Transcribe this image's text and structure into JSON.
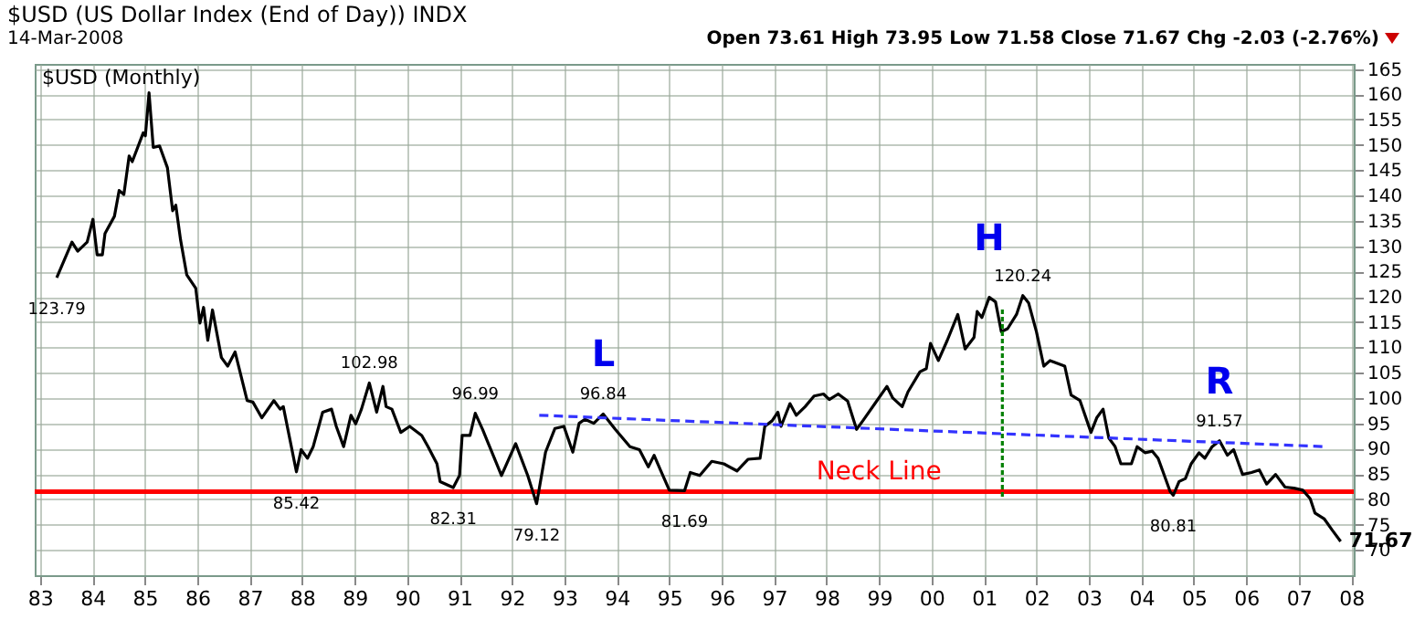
{
  "chart_data": {
    "type": "line",
    "title": "$USD (US Dollar Index (End of Day)) INDX",
    "subtitle": "14-Mar-2008",
    "annotations": [
      "Open 73.61  High 73.95  Low 71.58  Close 71.67  Chg -2.03 (-2.76%)",
      "$USD (Monthly)",
      {
        "text": "123.79",
        "x": 1983.32,
        "y": 123.79
      },
      {
        "text": "102.98",
        "x": 1989.28,
        "y": 102.98
      },
      {
        "text": "85.42",
        "x": 1987.89,
        "y": 85.42
      },
      {
        "text": "82.31",
        "x": 1990.88,
        "y": 82.31
      },
      {
        "text": "96.99",
        "x": 1991.3,
        "y": 96.99
      },
      {
        "text": "79.12",
        "x": 1992.47,
        "y": 79.12
      },
      {
        "text": "96.84",
        "x": 1993.74,
        "y": 96.84
      },
      {
        "text": "81.69",
        "x": 1995.29,
        "y": 81.69
      },
      {
        "text": "120.24",
        "x": 2001.74,
        "y": 120.24
      },
      {
        "text": "80.81",
        "x": 2004.61,
        "y": 80.81
      },
      {
        "text": "91.57",
        "x": 2005.49,
        "y": 91.57
      },
      {
        "text": "71.67",
        "x": 2007.8,
        "y": 71.67
      },
      {
        "text": "L",
        "x": 1993.74,
        "y": 96.84
      },
      {
        "text": "H",
        "x": 2001.1,
        "y": 119.9
      },
      {
        "text": "R",
        "x": 2005.49,
        "y": 91.57
      }
    ],
    "xlim": [
      1982.9,
      2008.05
    ],
    "ylim": [
      65,
      166
    ],
    "xticks": [
      {
        "value": 1983,
        "label": "83"
      },
      {
        "value": 1984,
        "label": "84"
      },
      {
        "value": 1985,
        "label": "85"
      },
      {
        "value": 1986,
        "label": "86"
      },
      {
        "value": 1987,
        "label": "87"
      },
      {
        "value": 1988,
        "label": "88"
      },
      {
        "value": 1989,
        "label": "89"
      },
      {
        "value": 1990,
        "label": "90"
      },
      {
        "value": 1991,
        "label": "91"
      },
      {
        "value": 1992,
        "label": "92"
      },
      {
        "value": 1993,
        "label": "93"
      },
      {
        "value": 1994,
        "label": "94"
      },
      {
        "value": 1995,
        "label": "95"
      },
      {
        "value": 1996,
        "label": "96"
      },
      {
        "value": 1997,
        "label": "97"
      },
      {
        "value": 1998,
        "label": "98"
      },
      {
        "value": 1999,
        "label": "99"
      },
      {
        "value": 2000,
        "label": "00"
      },
      {
        "value": 2001,
        "label": "01"
      },
      {
        "value": 2002,
        "label": "02"
      },
      {
        "value": 2003,
        "label": "03"
      },
      {
        "value": 2004,
        "label": "04"
      },
      {
        "value": 2005,
        "label": "05"
      },
      {
        "value": 2006,
        "label": "06"
      },
      {
        "value": 2007,
        "label": "07"
      },
      {
        "value": 2008,
        "label": "08"
      }
    ],
    "yticks": [
      70,
      75,
      80,
      85,
      90,
      95,
      100,
      105,
      110,
      115,
      120,
      125,
      130,
      135,
      140,
      145,
      150,
      155,
      160,
      165
    ],
    "grid": true,
    "legend": false,
    "marker": "none",
    "ref_lines": [
      {
        "axis": "y",
        "value": 81.5,
        "label": "Neck Line",
        "color": "#ff0000",
        "line_style": "solid"
      }
    ],
    "series": [
      {
        "color": "#000000",
        "line_style": "solid",
        "x": [
          1983.32,
          1983.61,
          1983.72,
          1983.9,
          1984.01,
          1984.09,
          1984.19,
          1984.24,
          1984.42,
          1984.51,
          1984.6,
          1984.7,
          1984.76,
          1984.97,
          1985.01,
          1985.08,
          1985.16,
          1985.28,
          1985.43,
          1985.53,
          1985.59,
          1985.68,
          1985.8,
          1985.97,
          1986.05,
          1986.12,
          1986.2,
          1986.29,
          1986.46,
          1986.58,
          1986.72,
          1986.95,
          1987.06,
          1987.23,
          1987.46,
          1987.58,
          1987.64,
          1987.89,
          1987.98,
          1988.1,
          1988.21,
          1988.39,
          1988.56,
          1988.65,
          1988.79,
          1988.93,
          1989.02,
          1989.13,
          1989.28,
          1989.42,
          1989.54,
          1989.6,
          1989.71,
          1989.88,
          1990.05,
          1990.28,
          1990.4,
          1990.57,
          1990.63,
          1990.88,
          1991.0,
          1991.05,
          1991.2,
          1991.3,
          1991.44,
          1991.55,
          1991.8,
          1992.07,
          1992.3,
          1992.47,
          1992.64,
          1992.82,
          1992.99,
          1993.16,
          1993.28,
          1993.39,
          1993.56,
          1993.74,
          1993.97,
          1994.25,
          1994.43,
          1994.6,
          1994.71,
          1994.83,
          1995.0,
          1995.29,
          1995.4,
          1995.58,
          1995.81,
          1996.04,
          1996.29,
          1996.5,
          1996.73,
          1996.82,
          1996.96,
          1997.07,
          1997.13,
          1997.3,
          1997.42,
          1997.59,
          1997.76,
          1997.94,
          1998.05,
          1998.22,
          1998.4,
          1998.57,
          1998.69,
          1998.92,
          1999.15,
          1999.26,
          1999.44,
          1999.55,
          1999.78,
          1999.9,
          1999.98,
          2000.13,
          2000.3,
          2000.5,
          2000.64,
          2000.81,
          2000.87,
          2000.96,
          2001.1,
          2001.22,
          2001.33,
          2001.45,
          2001.62,
          2001.74,
          2001.85,
          2002.0,
          2002.14,
          2002.26,
          2002.54,
          2002.66,
          2002.83,
          2003.04,
          2003.15,
          2003.27,
          2003.38,
          2003.5,
          2003.61,
          2003.81,
          2003.92,
          2004.07,
          2004.21,
          2004.32,
          2004.55,
          2004.61,
          2004.72,
          2004.84,
          2004.95,
          2005.1,
          2005.21,
          2005.35,
          2005.49,
          2005.64,
          2005.76,
          2005.93,
          2006.1,
          2006.25,
          2006.39,
          2006.56,
          2006.74,
          2006.91,
          2007.08,
          2007.22,
          2007.31,
          2007.49,
          2007.64,
          2007.8
        ],
        "values": [
          123.79,
          130.8,
          129,
          130.8,
          135.3,
          128.3,
          128.3,
          132.5,
          135.9,
          141,
          140.2,
          147.8,
          146.7,
          152.4,
          151.8,
          160.3,
          149.5,
          149.8,
          145.5,
          137,
          138.1,
          131.3,
          124.3,
          121.7,
          114.8,
          117.9,
          111.4,
          117.4,
          108,
          106.3,
          109.1,
          99.5,
          99.2,
          96.1,
          99.5,
          97.8,
          98.3,
          85.42,
          89.8,
          88.1,
          90.4,
          97.2,
          97.8,
          94.4,
          90.4,
          96.6,
          94.9,
          97.8,
          102.98,
          97.2,
          102.3,
          98.3,
          97.8,
          93.2,
          94.4,
          92.6,
          90.4,
          87,
          83.5,
          82.31,
          84.7,
          92.6,
          92.6,
          96.99,
          93.8,
          91,
          84.7,
          91,
          84.7,
          79.12,
          89.3,
          94,
          94.4,
          89.3,
          95,
          95.8,
          95,
          96.84,
          93.8,
          90.4,
          89.8,
          86.4,
          88.7,
          85.8,
          81.8,
          81.69,
          85.3,
          84.7,
          87.5,
          87,
          85.6,
          87.9,
          88.1,
          94.4,
          95.5,
          97.2,
          94.4,
          98.9,
          96.6,
          98.3,
          100.4,
          100.8,
          99.7,
          100.8,
          99.4,
          93.8,
          95.5,
          98.9,
          102.3,
          100,
          98.3,
          101.2,
          105.2,
          105.8,
          110.8,
          107.4,
          111.4,
          116.5,
          109.7,
          112,
          117.1,
          115.9,
          119.9,
          119,
          113.1,
          113.7,
          116.5,
          120.24,
          118.8,
          113.1,
          106.3,
          107.4,
          106.3,
          100.6,
          99.5,
          93.2,
          96.1,
          97.8,
          92.1,
          90.4,
          87,
          87,
          90.4,
          89.2,
          89.5,
          88.1,
          81.5,
          80.81,
          83.5,
          84.1,
          87,
          89.2,
          88.1,
          90.4,
          91.57,
          88.7,
          89.8,
          84.9,
          85.3,
          85.8,
          83,
          84.9,
          82.4,
          82.2,
          81.8,
          80.1,
          77.3,
          76.1,
          73.9,
          71.67
        ]
      },
      {
        "type": "line",
        "color": "#3333ff",
        "line_style": "dashed",
        "x": [
          1992.52,
          2007.5
        ],
        "values": [
          96.6,
          90.4
        ]
      },
      {
        "type": "line",
        "color": "#008000",
        "line_style": "dotted",
        "x": [
          2001.35,
          2001.35
        ],
        "values": [
          80.5,
          118
        ]
      }
    ]
  }
}
